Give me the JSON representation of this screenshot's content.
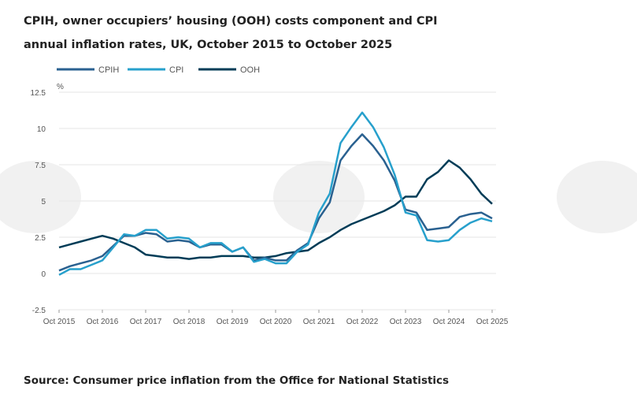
{
  "title": "CPIH, owner occupiers’ housing (OOH) costs component and CPI annual inflation rates, UK, October 2015 to October 2025",
  "source": "Source: Consumer price inflation from the Office for National Statistics",
  "chart_data": {
    "type": "line",
    "title": "CPIH, owner occupiers’ housing (OOH) costs component and CPI annual inflation rates, UK, October 2015 to October 2025",
    "ylabel": "%",
    "ylim": [
      -2.5,
      12.5
    ],
    "yticks": [
      "12.5",
      "10",
      "7.5",
      "5",
      "2.5",
      "0",
      "-2.5"
    ],
    "xticks": [
      "Oct 2015",
      "Oct 2016",
      "Oct 2017",
      "Oct 2018",
      "Oct 2019",
      "Oct 2020",
      "Oct 2021",
      "Oct 2022",
      "Oct 2023",
      "Oct 2024",
      "Oct 2025"
    ],
    "grid": "horizontal",
    "legend": "top-left",
    "x": [
      "Oct 2015",
      "Jan 2016",
      "Apr 2016",
      "Jul 2016",
      "Oct 2016",
      "Jan 2017",
      "Apr 2017",
      "Jul 2017",
      "Oct 2017",
      "Jan 2018",
      "Apr 2018",
      "Jul 2018",
      "Oct 2018",
      "Jan 2019",
      "Apr 2019",
      "Jul 2019",
      "Oct 2019",
      "Jan 2020",
      "Apr 2020",
      "Jul 2020",
      "Oct 2020",
      "Jan 2021",
      "Apr 2021",
      "Jul 2021",
      "Oct 2021",
      "Jan 2022",
      "Apr 2022",
      "Jul 2022",
      "Oct 2022",
      "Jan 2023",
      "Apr 2023",
      "Jul 2023",
      "Oct 2023",
      "Jan 2024",
      "Apr 2024",
      "Jul 2024",
      "Oct 2024",
      "Jan 2025",
      "Apr 2025",
      "Jul 2025",
      "Oct 2025"
    ],
    "series": [
      {
        "name": "CPIH",
        "color": "#2a6190",
        "values": [
          0.2,
          0.5,
          0.7,
          0.9,
          1.2,
          1.9,
          2.6,
          2.6,
          2.8,
          2.7,
          2.2,
          2.3,
          2.2,
          1.8,
          2.0,
          2.0,
          1.5,
          1.8,
          0.9,
          1.1,
          0.9,
          0.9,
          1.6,
          2.1,
          3.8,
          4.9,
          7.8,
          8.8,
          9.6,
          8.8,
          7.8,
          6.4,
          4.4,
          4.2,
          3.0,
          3.1,
          3.2,
          3.9,
          4.1,
          4.2,
          3.8
        ]
      },
      {
        "name": "CPI",
        "color": "#27a0cc",
        "values": [
          -0.1,
          0.3,
          0.3,
          0.6,
          0.9,
          1.8,
          2.7,
          2.6,
          3.0,
          3.0,
          2.4,
          2.5,
          2.4,
          1.8,
          2.1,
          2.1,
          1.5,
          1.8,
          0.8,
          1.0,
          0.7,
          0.7,
          1.5,
          2.0,
          4.2,
          5.5,
          9.0,
          10.1,
          11.1,
          10.1,
          8.7,
          6.8,
          4.2,
          4.0,
          2.3,
          2.2,
          2.3,
          3.0,
          3.5,
          3.8,
          3.6
        ]
      },
      {
        "name": "OOH",
        "color": "#003c57",
        "values": [
          1.8,
          2.0,
          2.2,
          2.4,
          2.6,
          2.4,
          2.1,
          1.8,
          1.3,
          1.2,
          1.1,
          1.1,
          1.0,
          1.1,
          1.1,
          1.2,
          1.2,
          1.2,
          1.1,
          1.1,
          1.2,
          1.4,
          1.5,
          1.6,
          2.1,
          2.5,
          3.0,
          3.4,
          3.7,
          4.0,
          4.3,
          4.7,
          5.3,
          5.3,
          6.5,
          7.0,
          7.8,
          7.3,
          6.5,
          5.5,
          4.8
        ]
      }
    ]
  }
}
